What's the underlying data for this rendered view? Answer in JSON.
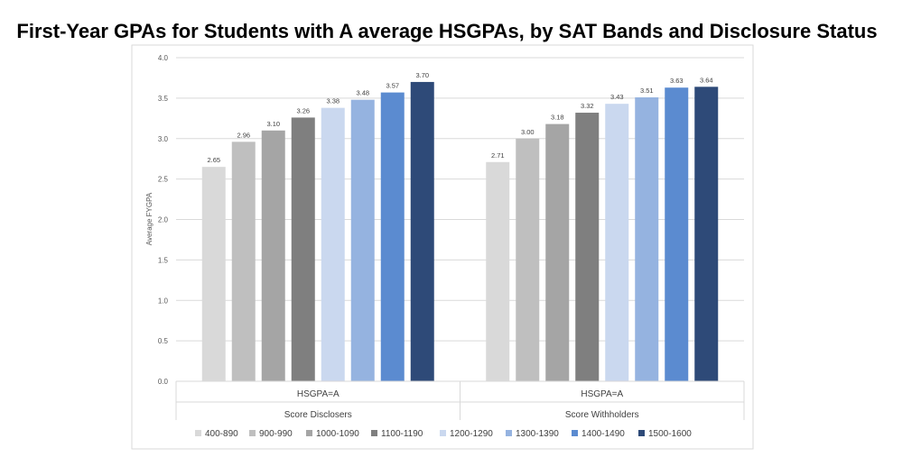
{
  "chart_data": {
    "type": "bar",
    "title": "First-Year GPAs for Students with A average HSGPAs, by SAT Bands and Disclosure Status",
    "ylabel": "Average FYGPA",
    "xlabel": "",
    "ylim": [
      0,
      4.0
    ],
    "yticks": [
      "0.0",
      "0.5",
      "1.0",
      "1.5",
      "2.0",
      "2.5",
      "3.0",
      "3.5",
      "4.0"
    ],
    "ytick_values": [
      0,
      0.5,
      1.0,
      1.5,
      2.0,
      2.5,
      3.0,
      3.5,
      4.0
    ],
    "groups": [
      {
        "label": "HSGPA=A",
        "outer_label": "Score Disclosers",
        "values": [
          2.65,
          2.96,
          3.1,
          3.26,
          3.38,
          3.48,
          3.57,
          3.7
        ],
        "labels": [
          "2.65",
          "2.96",
          "3.10",
          "3.26",
          "3.38",
          "3.48",
          "3.57",
          "3.70"
        ]
      },
      {
        "label": "HSGPA=A",
        "outer_label": "Score Withholders",
        "values": [
          2.71,
          3.0,
          3.18,
          3.32,
          3.43,
          3.51,
          3.63,
          3.64
        ],
        "labels": [
          "2.71",
          "3.00",
          "3.18",
          "3.32",
          "3.43",
          "3.51",
          "3.63",
          "3.64"
        ]
      }
    ],
    "series": [
      {
        "name": "400-890",
        "color": "#d9d9d9"
      },
      {
        "name": "900-990",
        "color": "#bfbfbf"
      },
      {
        "name": "1000-1090",
        "color": "#a5a5a5"
      },
      {
        "name": "1100-1190",
        "color": "#7f7f7f"
      },
      {
        "name": "1200-1290",
        "color": "#cad8ef"
      },
      {
        "name": "1300-1390",
        "color": "#95b3e0"
      },
      {
        "name": "1400-1490",
        "color": "#5b8bd0"
      },
      {
        "name": "1500-1600",
        "color": "#2e4a78"
      }
    ],
    "legend_position": "bottom",
    "grid": true
  }
}
